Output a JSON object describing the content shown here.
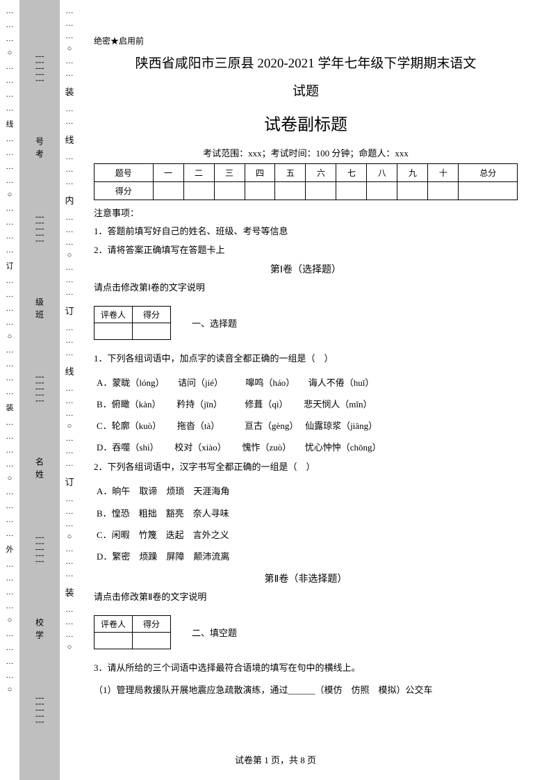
{
  "margin": {
    "leftLabels": [
      "线",
      "订",
      "装",
      "外"
    ],
    "grayLabels": [
      "号考",
      "级班",
      "名姓",
      "校学"
    ],
    "rightLabels": [
      "装",
      "线",
      "内",
      "订",
      "线",
      "订",
      "装"
    ]
  },
  "header": {
    "secret": "绝密★启用前",
    "title1": "陕西省咸阳市三原县 2020-2021 学年七年级下学期期末语文",
    "title2": "试题",
    "subtitle": "试卷副标题",
    "examInfo": "考试范围：xxx；考试时间：100 分钟；命题人：xxx"
  },
  "scoreTable": {
    "headers": [
      "题号",
      "一",
      "二",
      "三",
      "四",
      "五",
      "六",
      "七",
      "八",
      "九",
      "十",
      "总分"
    ],
    "row2Label": "得分"
  },
  "notice": {
    "label": "注意事项：",
    "item1": "1．答题前填写好自己的姓名、班级、考号等信息",
    "item2": "2．请将答案正确填写在答题卡上"
  },
  "section1": {
    "header": "第Ⅰ卷（选择题）",
    "instruction": "请点击修改第Ⅰ卷的文字说明",
    "grader": {
      "c1": "评卷人",
      "c2": "得分"
    },
    "label": "一、选择题"
  },
  "q1": {
    "stem": "1．下列各组词语中，加点字的读音全都正确的一组是（　）",
    "A": "A．蒙眬（lóng）　　诘问（jié）　　　嗥鸣（háo）　　诲人不倦（huǐ）",
    "B": "B．俯瞰（kàn）　　 矜持（jīn）　　　修葺（qì）　　 悲天悯人（mǐn）",
    "C": "C．轮廓（kuò）　　 拖沓（tà）　　　 亘古（gèng）　 仙露琼浆（jiāng）",
    "D": "D．吞噬（shì）　　 校对（xiào）　　 愧怍（zuò）　　忧心忡忡（chōng）"
  },
  "q2": {
    "stem": "2．下列各组词语中，汉字书写全都正确的一组是（　）",
    "A": "A．晌午　取谛　烦琐　天涯海角",
    "B": "B．惶恐　粗拙　豁亮　奈人寻味",
    "C": "C．闲暇　竹篾　迭起　言外之义",
    "D": "D．繁密　烦躁　屏障　颠沛流离"
  },
  "section2": {
    "header": "第Ⅱ卷（非选择题）",
    "instruction": "请点击修改第Ⅱ卷的文字说明",
    "grader": {
      "c1": "评卷人",
      "c2": "得分"
    },
    "label": "二、填空题"
  },
  "q3": {
    "stem": "3．请从所给的三个词语中选择最符合语境的填写在句中的横线上。",
    "line1": "（1）管理局救援队开展地震应急疏散演练，通过______（模仿　仿照　模拟）公交车"
  },
  "footer": "试卷第 1 页，共 8 页"
}
